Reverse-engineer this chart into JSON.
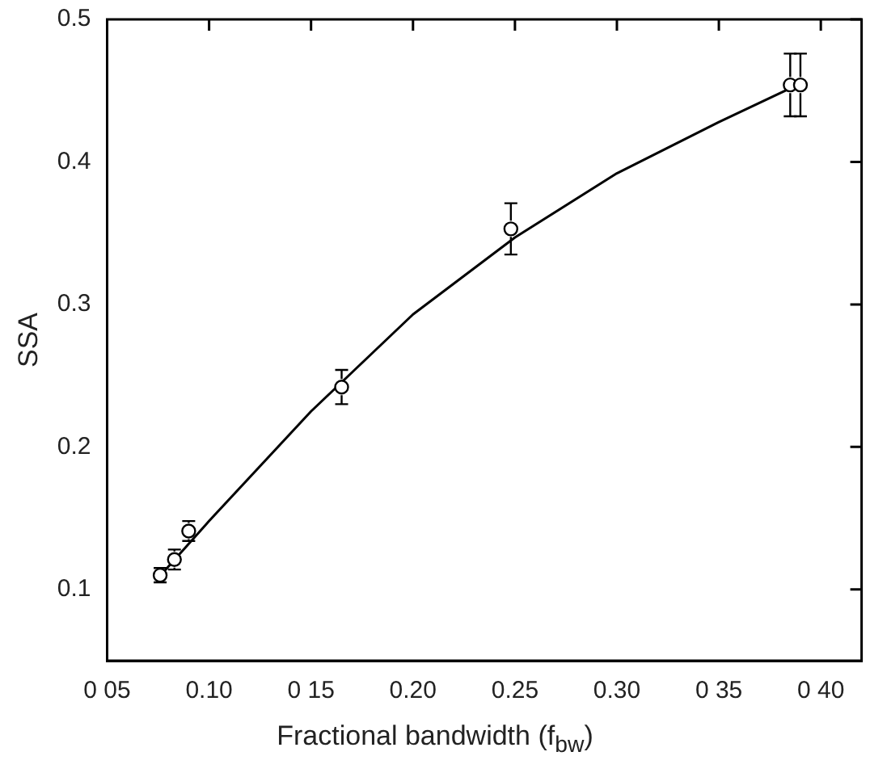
{
  "chart_data": {
    "type": "scatter",
    "xlabel": "Fractional bandwidth (f$_{bw}$)",
    "ylabel": "SSA",
    "xlim": [
      0.05,
      0.42
    ],
    "ylim": [
      0.05,
      0.5
    ],
    "xticks": [
      {
        "value": 0.05,
        "label": "0 05"
      },
      {
        "value": 0.1,
        "label": "0.10"
      },
      {
        "value": 0.15,
        "label": "0 15"
      },
      {
        "value": 0.2,
        "label": "0.20"
      },
      0.25,
      {
        "value": 0.3,
        "label": "0.30"
      },
      {
        "value": 0.35,
        "label": "0 35"
      },
      {
        "value": 0.4,
        "label": "0 40"
      }
    ],
    "yticks": [
      0.1,
      0.2,
      0.3,
      0.4,
      0.5
    ],
    "grid": false,
    "legend": false,
    "series": [
      {
        "color": "#000000",
        "marker": "circle",
        "x": [
          0.076,
          0.083,
          0.09,
          0.165,
          0.248,
          0.385,
          0.39
        ],
        "values": [
          0.11,
          0.121,
          0.141,
          0.242,
          0.353,
          0.454,
          0.454
        ],
        "errors": [
          0.005,
          0.007,
          0.007,
          0.012,
          0.018,
          0.022,
          0.022
        ]
      },
      {
        "type": "line",
        "color": "#000000",
        "marker": "none",
        "line_style": "solid",
        "x": [
          0.075,
          0.1,
          0.15,
          0.2,
          0.25,
          0.3,
          0.35,
          0.39
        ],
        "values": [
          0.108,
          0.148,
          0.225,
          0.293,
          0.347,
          0.392,
          0.428,
          0.455
        ]
      }
    ]
  }
}
